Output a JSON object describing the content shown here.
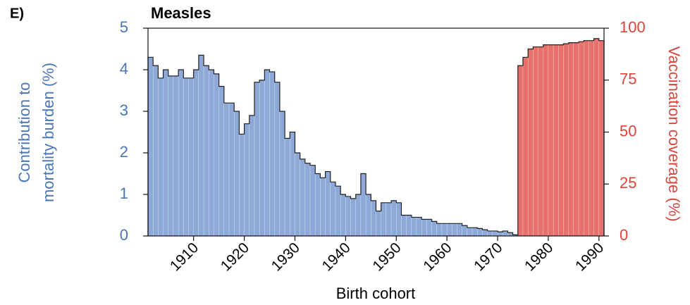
{
  "chart_data": {
    "type": "histogram",
    "panel_label": "E)",
    "title": "Measles",
    "xlabel": "Birth cohort",
    "ylabel": [
      "Contribution to",
      "mortality burden (%)"
    ],
    "y2label": "Vaccination coverage (%)",
    "xlim": [
      1901,
      1991
    ],
    "xticks": [
      1910,
      1920,
      1930,
      1940,
      1950,
      1960,
      1970,
      1980,
      1990
    ],
    "ylim": [
      0,
      5
    ],
    "yticks": [
      0,
      1,
      2,
      3,
      4,
      5
    ],
    "y2lim": [
      0,
      100
    ],
    "y2ticks": [
      0,
      25,
      50,
      75,
      100
    ],
    "series": [
      {
        "name": "Contribution to mortality burden",
        "color": "#8ea9d8",
        "axis_color": "#4a76b8",
        "bins": [
          1901,
          1902,
          1903,
          1904,
          1905,
          1906,
          1907,
          1908,
          1909,
          1910,
          1911,
          1912,
          1913,
          1914,
          1915,
          1916,
          1917,
          1918,
          1919,
          1920,
          1921,
          1922,
          1923,
          1924,
          1925,
          1926,
          1927,
          1928,
          1929,
          1930,
          1931,
          1932,
          1933,
          1934,
          1935,
          1936,
          1937,
          1938,
          1939,
          1940,
          1941,
          1942,
          1943,
          1944,
          1945,
          1946,
          1947,
          1948,
          1949,
          1950,
          1951,
          1952,
          1953,
          1954,
          1955,
          1956,
          1957,
          1958,
          1959,
          1960,
          1961,
          1962,
          1963,
          1964,
          1965,
          1966,
          1967,
          1968,
          1969,
          1970,
          1971,
          1972,
          1973,
          1974,
          1975,
          1976,
          1977,
          1978,
          1979,
          1980,
          1981,
          1982,
          1983,
          1984,
          1985,
          1986,
          1987,
          1988,
          1989,
          1990,
          1991
        ],
        "values": [
          4.3,
          4.1,
          3.8,
          4.0,
          3.85,
          3.85,
          4.0,
          3.8,
          3.8,
          4.0,
          4.35,
          4.1,
          4.0,
          3.9,
          3.6,
          3.2,
          3.2,
          3.0,
          2.45,
          2.7,
          2.9,
          3.7,
          3.75,
          4.0,
          3.95,
          3.7,
          3.0,
          2.35,
          2.5,
          2.0,
          1.85,
          1.75,
          1.7,
          1.5,
          1.4,
          1.55,
          1.3,
          1.2,
          1.0,
          0.95,
          0.9,
          1.0,
          1.5,
          1.0,
          0.85,
          0.6,
          0.8,
          0.8,
          0.85,
          0.8,
          0.5,
          0.5,
          0.45,
          0.45,
          0.4,
          0.4,
          0.35,
          0.3,
          0.3,
          0.3,
          0.3,
          0.3,
          0.25,
          0.2,
          0.2,
          0.18,
          0.15,
          0.12,
          0.12,
          0.1,
          0.12,
          0.08,
          0.03,
          0.02,
          0.01,
          0.01,
          0.01,
          0.01,
          0.01,
          0.01,
          0.01,
          0.01,
          0.01,
          0.01,
          0.01,
          0.01,
          0.01,
          0.01,
          0.01,
          0.01
        ]
      },
      {
        "name": "Vaccination coverage",
        "color": "#e8706a",
        "axis_color": "#d9453a",
        "axis": "y2",
        "bins": [
          1974,
          1975,
          1976,
          1977,
          1978,
          1979,
          1980,
          1981,
          1982,
          1983,
          1984,
          1985,
          1986,
          1987,
          1988,
          1989,
          1990,
          1991
        ],
        "values": [
          82,
          86,
          90,
          91,
          91,
          92,
          92,
          92,
          92,
          92.5,
          93,
          93,
          93.5,
          94,
          94,
          95,
          94
        ]
      }
    ]
  }
}
